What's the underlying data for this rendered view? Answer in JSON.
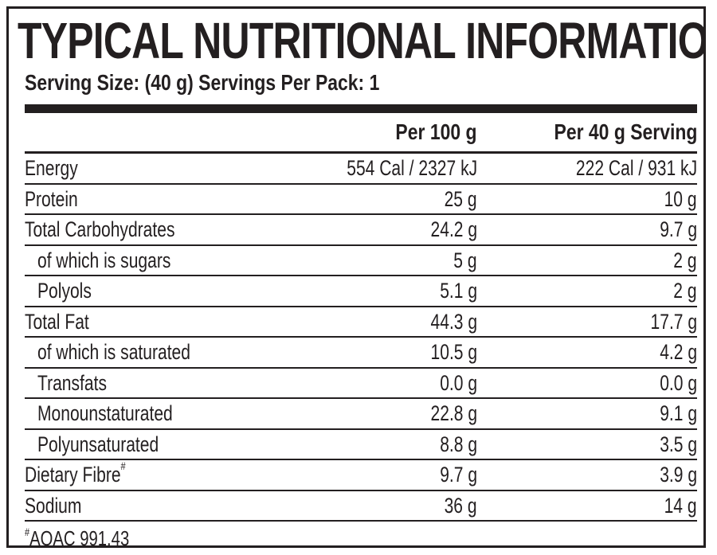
{
  "panel": {
    "title": "TYPICAL NUTRITIONAL INFORMATION",
    "serving_info": "Serving Size: (40 g) Servings Per Pack: 1"
  },
  "table": {
    "columns": [
      "Per 100 g",
      "Per 40 g Serving"
    ],
    "rows": [
      {
        "label": "Energy",
        "per100": "554 Cal / 2327 kJ",
        "perServing": "222 Cal / 931 kJ",
        "indent": false
      },
      {
        "label": "Protein",
        "per100": "25 g",
        "perServing": "10 g",
        "indent": false
      },
      {
        "label": "Total Carbohydrates",
        "per100": "24.2 g",
        "perServing": "9.7 g",
        "indent": false
      },
      {
        "label": "of which is sugars",
        "per100": "5 g",
        "perServing": "2 g",
        "indent": true
      },
      {
        "label": "Polyols",
        "per100": "5.1 g",
        "perServing": "2 g",
        "indent": true
      },
      {
        "label": "Total Fat",
        "per100": "44.3 g",
        "perServing": "17.7 g",
        "indent": false
      },
      {
        "label": "of which is saturated",
        "per100": "10.5 g",
        "perServing": "4.2 g",
        "indent": true
      },
      {
        "label": "Transfats",
        "per100": "0.0 g",
        "perServing": "0.0 g",
        "indent": true
      },
      {
        "label": "Monounstaturated",
        "per100": "22.8 g",
        "perServing": "9.1 g",
        "indent": true
      },
      {
        "label": "Polyunsaturated",
        "per100": "8.8 g",
        "perServing": "3.5 g",
        "indent": true
      },
      {
        "label": "Dietary Fibre",
        "per100": "9.7 g",
        "perServing": "3.9 g",
        "indent": false,
        "mark": "#"
      },
      {
        "label": "Sodium",
        "per100": "36 g",
        "perServing": "14 g",
        "indent": false
      }
    ]
  },
  "footnote": {
    "mark": "#",
    "text": "AOAC 991.43"
  }
}
